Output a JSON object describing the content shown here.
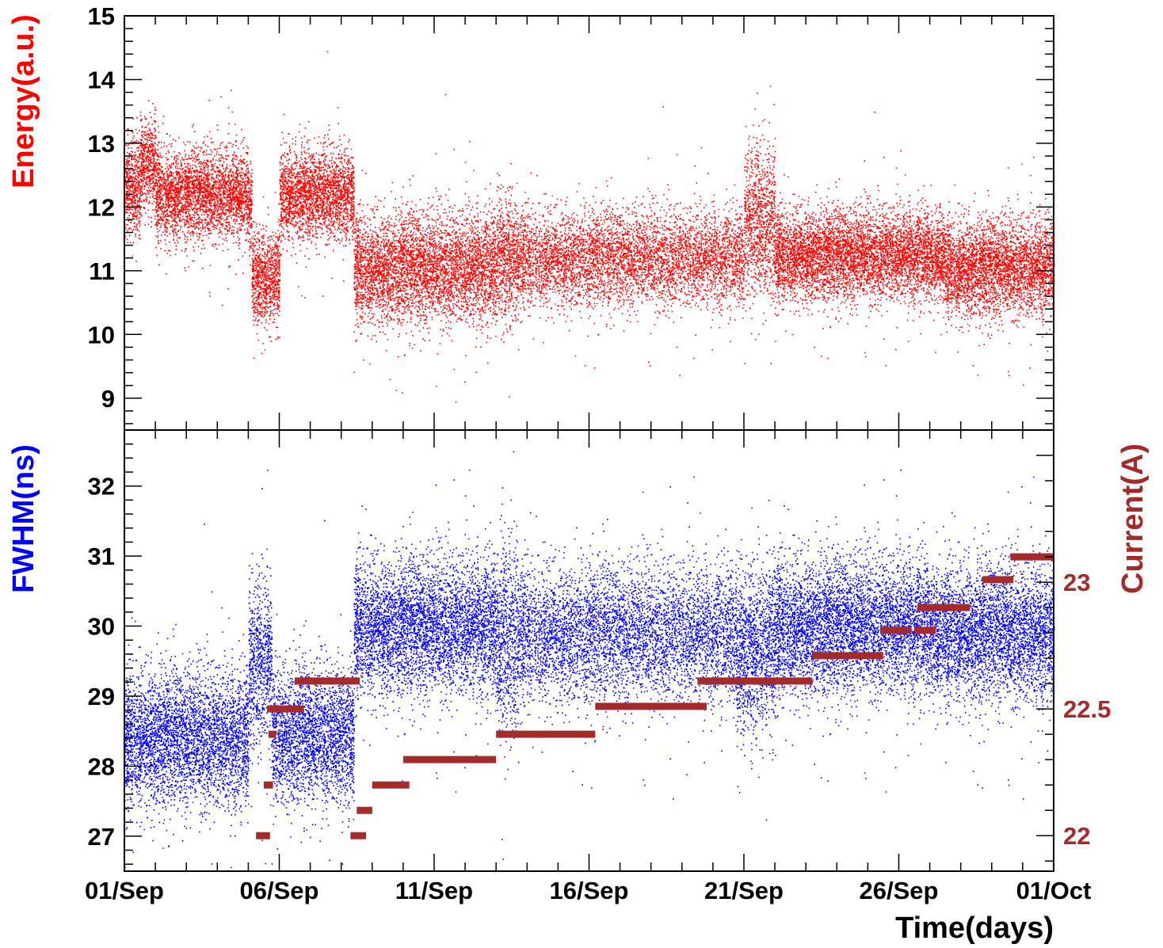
{
  "chart_data": [
    {
      "type": "scatter",
      "panel": "top",
      "ylabel": "Energy(a.u.)",
      "ylim": [
        8.5,
        15
      ],
      "yticks": [
        9,
        10,
        11,
        12,
        13,
        14,
        15
      ],
      "xlim": [
        0,
        30
      ],
      "color": "#ff0000",
      "segments": [
        {
          "t0": 0.0,
          "t1": 0.5,
          "mean": 12.3,
          "sd": 0.35
        },
        {
          "t0": 0.5,
          "t1": 1.0,
          "mean": 12.7,
          "sd": 0.35
        },
        {
          "t0": 1.0,
          "t1": 4.0,
          "mean": 12.2,
          "sd": 0.33
        },
        {
          "t0": 4.0,
          "t1": 4.1,
          "mean": 12.0,
          "sd": 0.3
        },
        {
          "t0": 4.1,
          "t1": 5.0,
          "mean": 10.9,
          "sd": 0.35
        },
        {
          "t0": 5.0,
          "t1": 7.4,
          "mean": 12.2,
          "sd": 0.33
        },
        {
          "t0": 7.4,
          "t1": 12.0,
          "mean": 11.05,
          "sd": 0.4
        },
        {
          "t0": 12.0,
          "t1": 12.7,
          "mean": 11.2,
          "sd": 0.45
        },
        {
          "t0": 12.7,
          "t1": 20.0,
          "mean": 11.2,
          "sd": 0.35
        },
        {
          "t0": 20.0,
          "t1": 21.0,
          "mean": 11.8,
          "sd": 0.55
        },
        {
          "t0": 21.0,
          "t1": 26.0,
          "mean": 11.25,
          "sd": 0.33
        },
        {
          "t0": 26.0,
          "t1": 26.5,
          "mean": 11.2,
          "sd": 0.3
        },
        {
          "t0": 26.5,
          "t1": 30.0,
          "mean": 11.05,
          "sd": 0.35
        }
      ]
    },
    {
      "type": "scatter",
      "panel": "bottom",
      "ylabel": "FWHM(ns)",
      "ylim": [
        26.5,
        32.8
      ],
      "yticks": [
        27,
        28,
        29,
        30,
        31,
        32
      ],
      "xlim": [
        0,
        30
      ],
      "color": "#0000ff",
      "segments": [
        {
          "t0": 0.0,
          "t1": 4.0,
          "mean": 28.4,
          "sd": 0.45
        },
        {
          "t0": 4.0,
          "t1": 4.75,
          "mean": 29.5,
          "sd": 0.55
        },
        {
          "t0": 4.75,
          "t1": 7.4,
          "mean": 28.45,
          "sd": 0.45
        },
        {
          "t0": 7.4,
          "t1": 12.0,
          "mean": 30.0,
          "sd": 0.45
        },
        {
          "t0": 12.0,
          "t1": 12.7,
          "mean": 29.8,
          "sd": 0.65
        },
        {
          "t0": 12.7,
          "t1": 19.7,
          "mean": 29.9,
          "sd": 0.45
        },
        {
          "t0": 19.7,
          "t1": 21.0,
          "mean": 29.7,
          "sd": 0.55
        },
        {
          "t0": 21.0,
          "t1": 26.0,
          "mean": 30.0,
          "sd": 0.45
        },
        {
          "t0": 26.0,
          "t1": 26.5,
          "mean": 29.9,
          "sd": 0.4
        },
        {
          "t0": 26.5,
          "t1": 30.0,
          "mean": 29.9,
          "sd": 0.45
        }
      ]
    },
    {
      "type": "line",
      "panel": "bottom-right",
      "ylabel": "Current(A)",
      "ylim": [
        21.86,
        23.6
      ],
      "yticks": [
        22,
        22.5,
        23
      ],
      "ytick_labels": [
        "22",
        "22.5",
        "23"
      ],
      "color": "#a52a2a",
      "steps": [
        {
          "t0": 4.25,
          "t1": 4.7,
          "value": 22.0
        },
        {
          "t0": 4.5,
          "t1": 4.8,
          "value": 22.2
        },
        {
          "t0": 4.65,
          "t1": 4.9,
          "value": 22.4
        },
        {
          "t0": 4.6,
          "t1": 5.8,
          "value": 22.5
        },
        {
          "t0": 5.5,
          "t1": 7.6,
          "value": 22.61
        },
        {
          "t0": 7.3,
          "t1": 7.8,
          "value": 22.0
        },
        {
          "t0": 7.5,
          "t1": 8.0,
          "value": 22.1
        },
        {
          "t0": 8.0,
          "t1": 9.2,
          "value": 22.2
        },
        {
          "t0": 9.0,
          "t1": 12.0,
          "value": 22.3
        },
        {
          "t0": 12.0,
          "t1": 15.2,
          "value": 22.4
        },
        {
          "t0": 15.2,
          "t1": 18.8,
          "value": 22.51
        },
        {
          "t0": 18.5,
          "t1": 22.2,
          "value": 22.61
        },
        {
          "t0": 22.2,
          "t1": 24.5,
          "value": 22.71
        },
        {
          "t0": 24.4,
          "t1": 25.4,
          "value": 22.81
        },
        {
          "t0": 25.5,
          "t1": 26.2,
          "value": 22.81
        },
        {
          "t0": 25.6,
          "t1": 27.3,
          "value": 22.9
        },
        {
          "t0": 27.7,
          "t1": 28.7,
          "value": 23.01
        },
        {
          "t0": 28.6,
          "t1": 30.0,
          "value": 23.1
        }
      ]
    }
  ],
  "x_axis": {
    "title": "Time(days)",
    "ticks": [
      {
        "day": 0,
        "label": "01/Sep"
      },
      {
        "day": 5,
        "label": "06/Sep"
      },
      {
        "day": 10,
        "label": "11/Sep"
      },
      {
        "day": 15,
        "label": "16/Sep"
      },
      {
        "day": 20,
        "label": "21/Sep"
      },
      {
        "day": 25,
        "label": "26/Sep"
      },
      {
        "day": 30,
        "label": "01/Oct"
      }
    ]
  }
}
